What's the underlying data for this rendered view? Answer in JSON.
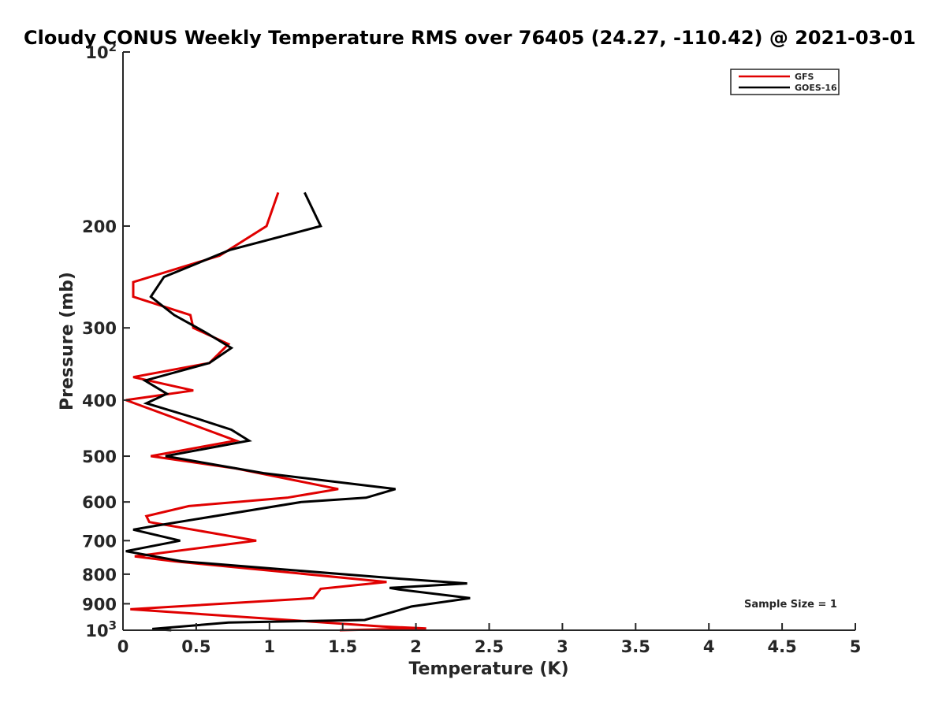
{
  "chart_data": {
    "type": "line",
    "title": "Cloudy CONUS Weekly Temperature RMS over 76405 (24.27, -110.42) @ 2021-03-01",
    "xlabel": "Temperature (K)",
    "ylabel": "Pressure (mb)",
    "xlim": [
      0,
      5
    ],
    "ylim": [
      100,
      1000
    ],
    "y_scale": "log",
    "y_reversed": true,
    "grid": false,
    "legend_position": "top-right",
    "x_ticks": [
      "0",
      "0.5",
      "1",
      "1.5",
      "2",
      "2.5",
      "3",
      "3.5",
      "4",
      "4.5",
      "5"
    ],
    "y_ticks": [
      {
        "value": 100,
        "base": "10",
        "exp": "2"
      },
      {
        "value": 200,
        "label": "200"
      },
      {
        "value": 300,
        "label": "300"
      },
      {
        "value": 400,
        "label": "400"
      },
      {
        "value": 500,
        "label": "500"
      },
      {
        "value": 600,
        "label": "600"
      },
      {
        "value": 700,
        "label": "700"
      },
      {
        "value": 800,
        "label": "800"
      },
      {
        "value": 900,
        "label": "900"
      },
      {
        "value": 1000,
        "base": "10",
        "exp": "3"
      }
    ],
    "annotation": "Sample Size = 1",
    "series": [
      {
        "name": "GFS",
        "color": "#e00000",
        "points": [
          [
            1.06,
            175
          ],
          [
            0.98,
            200
          ],
          [
            0.66,
            225
          ],
          [
            0.07,
            250
          ],
          [
            0.07,
            265
          ],
          [
            0.46,
            285
          ],
          [
            0.48,
            300
          ],
          [
            0.72,
            320
          ],
          [
            0.59,
            345
          ],
          [
            0.07,
            365
          ],
          [
            0.48,
            385
          ],
          [
            0.02,
            400
          ],
          [
            0.57,
            450
          ],
          [
            0.77,
            470
          ],
          [
            0.19,
            500
          ],
          [
            0.77,
            525
          ],
          [
            1.47,
            570
          ],
          [
            1.12,
            590
          ],
          [
            0.45,
            610
          ],
          [
            0.16,
            635
          ],
          [
            0.18,
            650
          ],
          [
            0.91,
            700
          ],
          [
            0.08,
            745
          ],
          [
            0.35,
            760
          ],
          [
            1.8,
            825
          ],
          [
            1.35,
            848
          ],
          [
            1.3,
            880
          ],
          [
            0.05,
            920
          ],
          [
            1.77,
            985
          ],
          [
            2.07,
            993
          ],
          [
            1.48,
            1000
          ]
        ]
      },
      {
        "name": "GOES-16",
        "color": "#000000",
        "points": [
          [
            1.24,
            175
          ],
          [
            1.35,
            200
          ],
          [
            0.73,
            220
          ],
          [
            0.28,
            245
          ],
          [
            0.19,
            265
          ],
          [
            0.35,
            285
          ],
          [
            0.56,
            305
          ],
          [
            0.74,
            325
          ],
          [
            0.59,
            345
          ],
          [
            0.15,
            370
          ],
          [
            0.3,
            390
          ],
          [
            0.16,
            405
          ],
          [
            0.5,
            430
          ],
          [
            0.74,
            450
          ],
          [
            0.86,
            470
          ],
          [
            0.29,
            500
          ],
          [
            0.96,
            535
          ],
          [
            1.86,
            570
          ],
          [
            1.66,
            590
          ],
          [
            1.22,
            600
          ],
          [
            0.22,
            660
          ],
          [
            0.07,
            670
          ],
          [
            0.39,
            700
          ],
          [
            0.02,
            730
          ],
          [
            0.4,
            760
          ],
          [
            1.9,
            815
          ],
          [
            2.35,
            830
          ],
          [
            1.82,
            845
          ],
          [
            1.88,
            850
          ],
          [
            2.37,
            880
          ],
          [
            1.97,
            910
          ],
          [
            1.84,
            930
          ],
          [
            1.65,
            960
          ],
          [
            0.72,
            970
          ],
          [
            0.2,
            995
          ],
          [
            0.33,
            1000
          ]
        ]
      }
    ]
  }
}
